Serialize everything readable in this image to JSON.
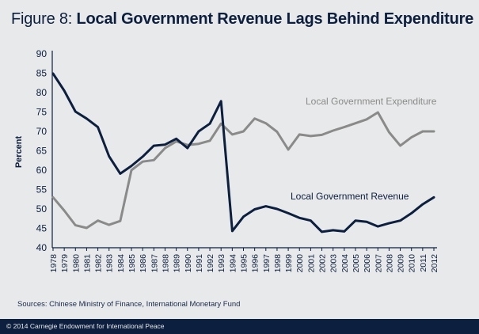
{
  "header": {
    "figure_label": "Figure 8: ",
    "title": "Local Government Revenue Lags Behind Expenditure"
  },
  "chart_data": {
    "type": "line",
    "title": "Figure 8: Local Government Revenue Lags Behind Expenditure",
    "xlabel": "",
    "ylabel": "Percent",
    "ylim": [
      40,
      90
    ],
    "yticks": [
      40,
      45,
      50,
      55,
      60,
      65,
      70,
      75,
      80,
      85,
      90
    ],
    "x": [
      "1978",
      "1979",
      "1980",
      "1981",
      "1982",
      "1983",
      "1984",
      "1985",
      "1986",
      "1987",
      "1988",
      "1989",
      "1990",
      "1991",
      "1992",
      "1993",
      "1994",
      "1995",
      "1996",
      "1997",
      "1998",
      "1999",
      "2000",
      "2001",
      "2002",
      "2003",
      "2004",
      "2005",
      "2006",
      "2007",
      "2008",
      "2009",
      "2010",
      "2011",
      "2012"
    ],
    "series": [
      {
        "name": "Local Government Expenditure",
        "color": "#8a8a8a",
        "values": [
          53,
          49.6,
          45.8,
          45.1,
          47,
          45.9,
          46.9,
          60,
          62.2,
          62.6,
          65.7,
          67.4,
          66.5,
          66.8,
          67.6,
          72,
          69.2,
          70,
          73.3,
          72.1,
          69.9,
          65.3,
          69.2,
          68.8,
          69.1,
          70.2,
          71.1,
          72.1,
          73.1,
          74.9,
          69.8,
          66.3,
          68.5,
          70,
          70
        ]
      },
      {
        "name": "Local Government Revenue",
        "color": "#0c1f3e",
        "values": [
          84.9,
          80.5,
          75.1,
          73.3,
          71.1,
          63.6,
          59.1,
          61.1,
          63.5,
          66.3,
          66.6,
          68.1,
          65.7,
          70,
          72,
          77.8,
          44.3,
          48,
          49.9,
          50.7,
          50,
          48.9,
          47.7,
          47,
          44.1,
          44.5,
          44.2,
          47,
          46.7,
          45.5,
          46.3,
          47,
          48.9,
          51.2,
          53
        ]
      }
    ],
    "annotations": [
      "Local Government Expenditure",
      "Local Government Revenue"
    ],
    "grid": false,
    "legend": "none (direct labels)"
  },
  "sources_text": "Sources: Chinese Ministry of Finance, International Monetary Fund",
  "footer_text": "© 2014 Carnegie Endowment for International Peace"
}
